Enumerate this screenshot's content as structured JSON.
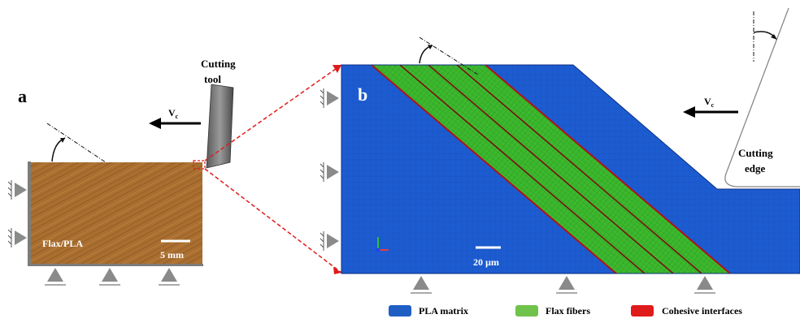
{
  "panel_a": {
    "label": "a",
    "tool_label_line1": "Cutting",
    "tool_label_line2": "tool",
    "velocity_main": "V",
    "velocity_sub": "c",
    "material_label": "Flax/PLA",
    "scale_label": "5 mm"
  },
  "panel_b": {
    "label": "b",
    "velocity_main": "V",
    "velocity_sub": "c",
    "edge_label_line1": "Cutting",
    "edge_label_line2": "edge",
    "scale_label": "20 µm"
  },
  "legend": [
    {
      "label": "PLA matrix",
      "color": "#1f5fc4"
    },
    {
      "label": "Flax fibers",
      "color": "#6fc24a"
    },
    {
      "label": "Cohesive interfaces",
      "color": "#e01b1b"
    }
  ],
  "colors": {
    "matrix": "#1d5bd1",
    "fiber": "#35b52a",
    "interface": "#b31212",
    "specimen": "#9a6428",
    "support": "#8a8a8a",
    "dashed_zoom": "#e01b1b"
  }
}
